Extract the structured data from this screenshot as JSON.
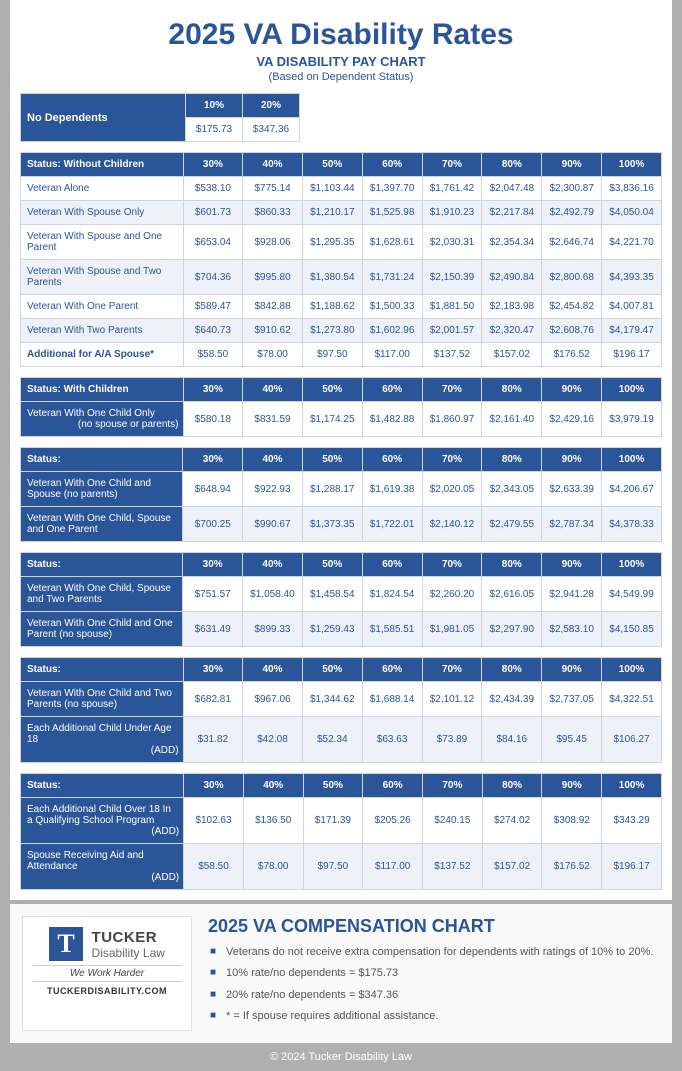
{
  "title": "2025 VA Disability Rates",
  "subtitle1": "VA DISABILITY PAY CHART",
  "subtitle2": "(Based on Dependent Status)",
  "no_dep": {
    "label": "No Dependents",
    "cols": [
      "10%",
      "20%"
    ],
    "vals": [
      "$175.73",
      "$347.36"
    ]
  },
  "pct_cols": [
    "30%",
    "40%",
    "50%",
    "60%",
    "70%",
    "80%",
    "90%",
    "100%"
  ],
  "sections": [
    {
      "header": "Status: Without Children",
      "rows": [
        {
          "label": "Veteran Alone",
          "v": [
            "$538.10",
            "$775.14",
            "$1,103.44",
            "$1,397.70",
            "$1,761.42",
            "$2,047.48",
            "$2,300.87",
            "$3,836.16"
          ]
        },
        {
          "label": "Veteran With Spouse Only",
          "v": [
            "$601.73",
            "$860.33",
            "$1,210.17",
            "$1,525.98",
            "$1,910.23",
            "$2,217.84",
            "$2,492.79",
            "$4,050.04"
          ]
        },
        {
          "label": "Veteran With Spouse and One Parent",
          "v": [
            "$653.04",
            "$928.06",
            "$1,295.35",
            "$1,628.61",
            "$2,030.31",
            "$2,354.34",
            "$2,646.74",
            "$4,221.70"
          ]
        },
        {
          "label": "Veteran With Spouse and Two Parents",
          "v": [
            "$704.36",
            "$995.80",
            "$1,380.54",
            "$1,731.24",
            "$2,150.39",
            "$2,490.84",
            "$2,800.68",
            "$4,393.35"
          ]
        },
        {
          "label": "Veteran With One Parent",
          "v": [
            "$589.47",
            "$842.88",
            "$1,188.62",
            "$1,500.33",
            "$1,881.50",
            "$2,183.98",
            "$2,454.82",
            "$4,007.81"
          ]
        },
        {
          "label": "Veteran With Two Parents",
          "v": [
            "$640.73",
            "$910.62",
            "$1,273.80",
            "$1,602.96",
            "$2,001.57",
            "$2,320.47",
            "$2,608.76",
            "$4,179.47"
          ]
        },
        {
          "label": "Additional for A/A Spouse*",
          "bold": true,
          "v": [
            "$58.50",
            "$78.00",
            "$97.50",
            "$117.00",
            "$137.52",
            "$157.02",
            "$176.52",
            "$196.17"
          ]
        }
      ]
    },
    {
      "header": "Status: With Children",
      "rows": [
        {
          "label": "Veteran With One Child Only\n(no spouse or parents)",
          "hdr_label": true,
          "v": [
            "$580.18",
            "$831.59",
            "$1,174.25",
            "$1,482.88",
            "$1,860.97",
            "$2,161.40",
            "$2,429.16",
            "$3,979.19"
          ]
        }
      ]
    },
    {
      "header": "Status:",
      "rows": [
        {
          "label": "Veteran With One Child and Spouse (no parents)",
          "hdr_label": true,
          "v": [
            "$648.94",
            "$922.93",
            "$1,288.17",
            "$1,619.38",
            "$2,020.05",
            "$2,343.05",
            "$2,633.39",
            "$4,206.67"
          ]
        },
        {
          "label": "Veteran With One Child, Spouse and One Parent",
          "hdr_label": true,
          "v": [
            "$700.25",
            "$990.67",
            "$1,373.35",
            "$1,722.01",
            "$2,140.12",
            "$2,479.55",
            "$2,787.34",
            "$4,378.33"
          ]
        }
      ]
    },
    {
      "header": "Status:",
      "rows": [
        {
          "label": "Veteran With One Child, Spouse and Two Parents",
          "hdr_label": true,
          "v": [
            "$751.57",
            "$1,058.40",
            "$1,458.54",
            "$1,824.54",
            "$2,260.20",
            "$2,616.05",
            "$2,941.28",
            "$4,549.99"
          ]
        },
        {
          "label": "Veteran With One Child and One Parent (no spouse)",
          "hdr_label": true,
          "v": [
            "$631.49",
            "$899.33",
            "$1,259.43",
            "$1,585.51",
            "$1,981.05",
            "$2,297.90",
            "$2,583.10",
            "$4,150.85"
          ]
        }
      ]
    },
    {
      "header": "Status:",
      "rows": [
        {
          "label": "Veteran With One Child and Two Parents (no spouse)",
          "hdr_label": true,
          "v": [
            "$682.81",
            "$967.06",
            "$1,344.62",
            "$1,688.14",
            "$2,101.12",
            "$2,434.39",
            "$2,737.05",
            "$4,322.51"
          ]
        },
        {
          "label": "Each Additional Child Under Age 18\n(ADD)",
          "hdr_label": true,
          "v": [
            "$31.82",
            "$42.08",
            "$52.34",
            "$63.63",
            "$73.89",
            "$84.16",
            "$95.45",
            "$106.27"
          ]
        }
      ]
    },
    {
      "header": "Status:",
      "rows": [
        {
          "label": "Each Additional Child Over 18 In a Qualifying School Program\n(ADD)",
          "hdr_label": true,
          "v": [
            "$102.63",
            "$136.50",
            "$171.39",
            "$205.26",
            "$240.15",
            "$274.02",
            "$308.92",
            "$343.29"
          ]
        },
        {
          "label": "Spouse Receiving Aid and Attendance\n(ADD)",
          "hdr_label": true,
          "v": [
            "$58.50",
            "$78.00",
            "$97.50",
            "$117.00",
            "$137.52",
            "$157.02",
            "$176.52",
            "$196.17"
          ]
        }
      ]
    }
  ],
  "footer": {
    "title": "2025 VA COMPENSATION CHART",
    "bullets": [
      "Veterans do not receive extra compensation for dependents with ratings of 10% to 20%.",
      "10% rate/no dependents = $175.73",
      "20% rate/no dependents = $347.36",
      "* = If spouse requires additional assistance."
    ],
    "logo": {
      "t": "T",
      "name": "TUCKER",
      "sub": "Disability Law",
      "slogan": "We Work Harder",
      "url": "TUCKERDISABILITY.COM"
    }
  },
  "copyright": "© 2024 Tucker Disability Law"
}
